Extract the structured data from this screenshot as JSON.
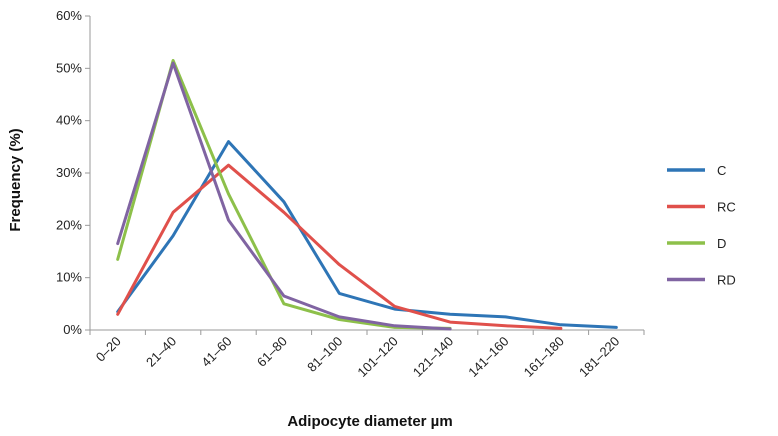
{
  "chart_data": {
    "type": "line",
    "xlabel": "Adipocyte diameter µm",
    "ylabel": "Frequency (%)",
    "categories": [
      "0–20",
      "21–40",
      "41–60",
      "61–80",
      "81–100",
      "101–120",
      "121–140",
      "141–160",
      "161–180",
      "181–220"
    ],
    "ylim": [
      0,
      60
    ],
    "yticks": [
      "0%",
      "10%",
      "20%",
      "30%",
      "40%",
      "50%",
      "60%"
    ],
    "grid": false,
    "legend_position": "right",
    "series": [
      {
        "name": "C",
        "color": "#2E75B6",
        "values": [
          3.5,
          18,
          36,
          24.5,
          7,
          4,
          3,
          2.5,
          1,
          0.5
        ]
      },
      {
        "name": "RC",
        "color": "#E0504B",
        "values": [
          3,
          22.5,
          31.5,
          22.5,
          12.5,
          4.5,
          1.5,
          0.8,
          0.3,
          null
        ]
      },
      {
        "name": "D",
        "color": "#8DC04A",
        "values": [
          13.5,
          51.5,
          26,
          5,
          2,
          0.5,
          0.3,
          null,
          null,
          null
        ]
      },
      {
        "name": "RD",
        "color": "#8064A2",
        "values": [
          16.5,
          51,
          21,
          6.5,
          2.5,
          0.8,
          0.2,
          null,
          null,
          null
        ]
      }
    ]
  }
}
